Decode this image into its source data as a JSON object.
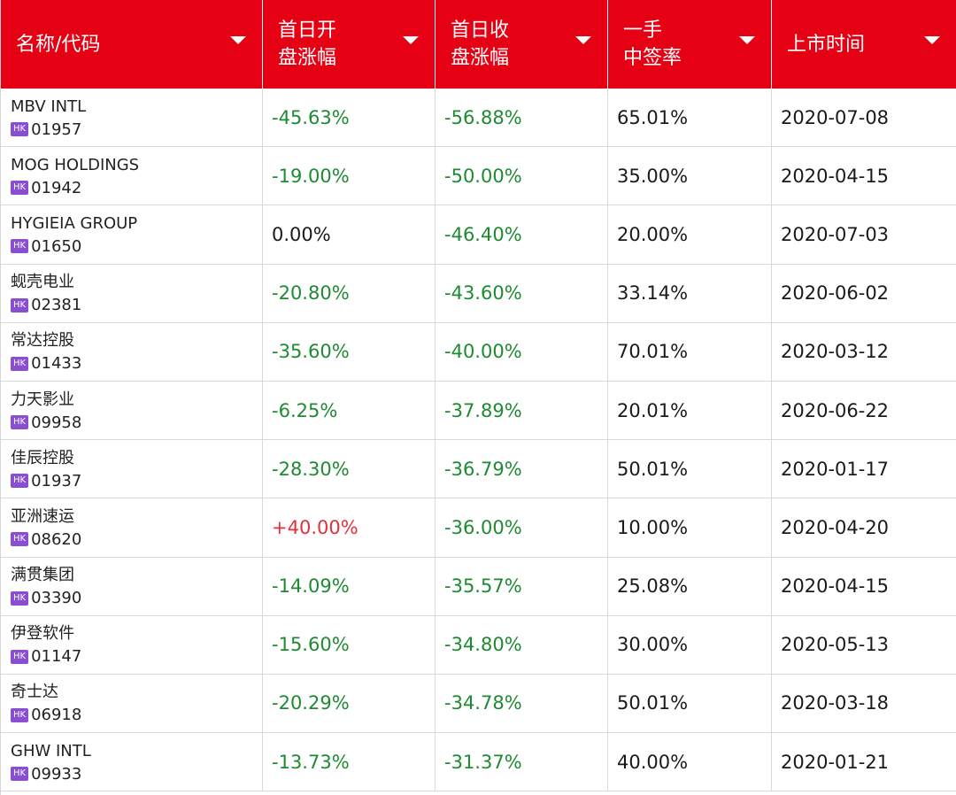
{
  "header": {
    "columns": [
      {
        "label": "名称/代码"
      },
      {
        "label": "首日开\n盘涨幅"
      },
      {
        "label": "首日收\n盘涨幅"
      },
      {
        "label": "一手\n中签率"
      },
      {
        "label": "上市时间"
      }
    ]
  },
  "colors": {
    "header_bg": "#e50014",
    "rise": "#e3313c",
    "fall": "#1e8a32",
    "market_badge": "#8a4fd0"
  },
  "rows": [
    {
      "name": "MBV INTL",
      "market": "HK",
      "code": "01957",
      "open_change": "-45.63%",
      "close_change": "-56.88%",
      "lot_rate": "65.01%",
      "list_date": "2020-07-08"
    },
    {
      "name": "MOG HOLDINGS",
      "market": "HK",
      "code": "01942",
      "open_change": "-19.00%",
      "close_change": "-50.00%",
      "lot_rate": "35.00%",
      "list_date": "2020-04-15"
    },
    {
      "name": "HYGIEIA GROUP",
      "market": "HK",
      "code": "01650",
      "open_change": "0.00%",
      "close_change": "-46.40%",
      "lot_rate": "20.00%",
      "list_date": "2020-07-03"
    },
    {
      "name": "蚬壳电业",
      "market": "HK",
      "code": "02381",
      "open_change": "-20.80%",
      "close_change": "-43.60%",
      "lot_rate": "33.14%",
      "list_date": "2020-06-02"
    },
    {
      "name": "常达控股",
      "market": "HK",
      "code": "01433",
      "open_change": "-35.60%",
      "close_change": "-40.00%",
      "lot_rate": "70.01%",
      "list_date": "2020-03-12"
    },
    {
      "name": "力天影业",
      "market": "HK",
      "code": "09958",
      "open_change": "-6.25%",
      "close_change": "-37.89%",
      "lot_rate": "20.01%",
      "list_date": "2020-06-22"
    },
    {
      "name": "佳辰控股",
      "market": "HK",
      "code": "01937",
      "open_change": "-28.30%",
      "close_change": "-36.79%",
      "lot_rate": "50.01%",
      "list_date": "2020-01-17"
    },
    {
      "name": "亚洲速运",
      "market": "HK",
      "code": "08620",
      "open_change": "+40.00%",
      "close_change": "-36.00%",
      "lot_rate": "10.00%",
      "list_date": "2020-04-20"
    },
    {
      "name": "满贯集团",
      "market": "HK",
      "code": "03390",
      "open_change": "-14.09%",
      "close_change": "-35.57%",
      "lot_rate": "25.08%",
      "list_date": "2020-04-15"
    },
    {
      "name": "伊登软件",
      "market": "HK",
      "code": "01147",
      "open_change": "-15.60%",
      "close_change": "-34.80%",
      "lot_rate": "30.00%",
      "list_date": "2020-05-13"
    },
    {
      "name": "奇士达",
      "market": "HK",
      "code": "06918",
      "open_change": "-20.29%",
      "close_change": "-34.78%",
      "lot_rate": "50.01%",
      "list_date": "2020-03-18"
    },
    {
      "name": "GHW INTL",
      "market": "HK",
      "code": "09933",
      "open_change": "-13.73%",
      "close_change": "-31.37%",
      "lot_rate": "40.00%",
      "list_date": "2020-01-21"
    }
  ]
}
